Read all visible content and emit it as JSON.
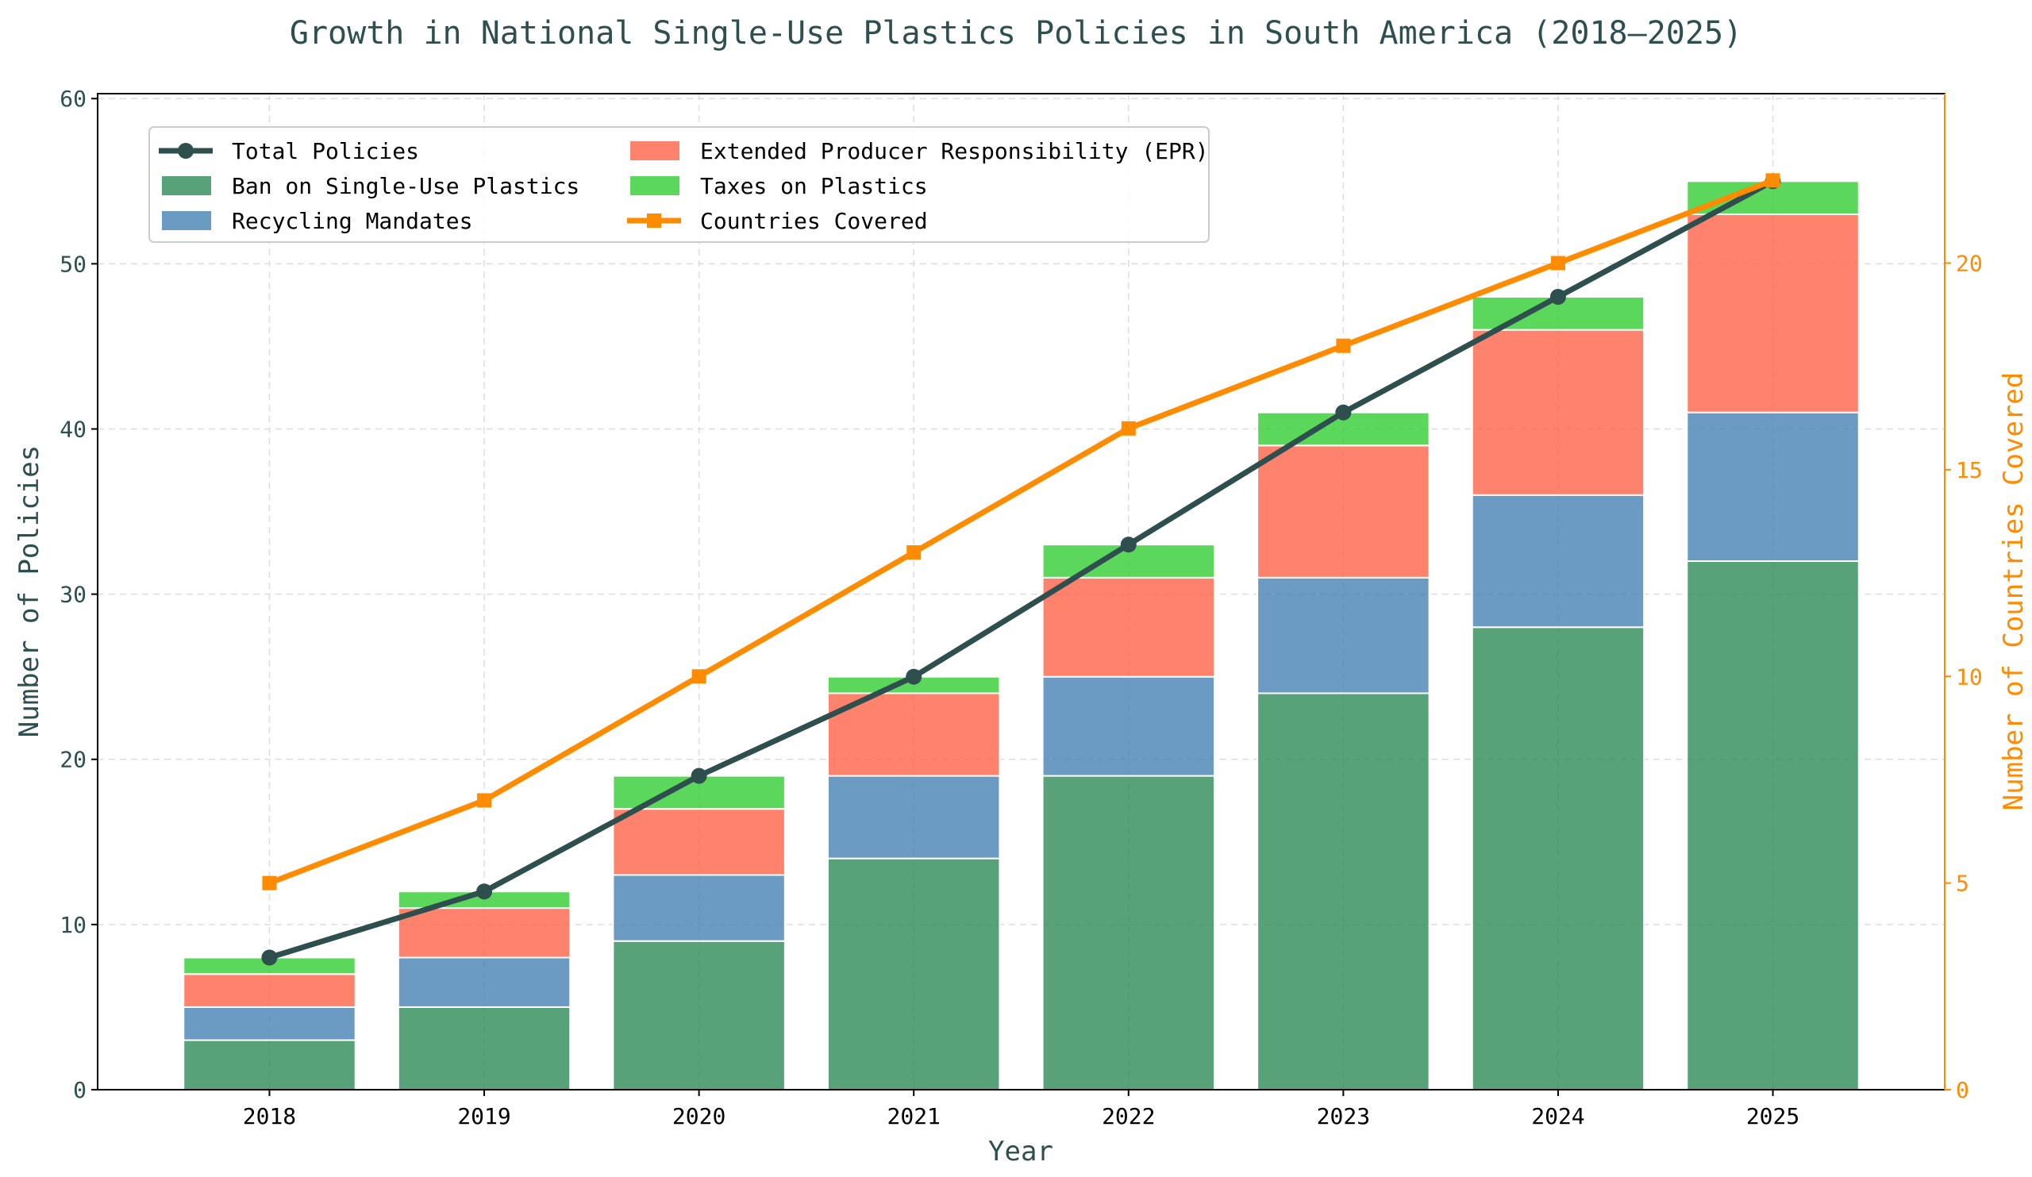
{
  "chart_data": {
    "type": "bar",
    "stacked": true,
    "title": "Growth in National Single-Use Plastics Policies in South America (2018–2025)",
    "xlabel": "Year",
    "ylabel": "Number of Policies",
    "y2label": "Number of Countries Covered",
    "categories": [
      "2018",
      "2019",
      "2020",
      "2021",
      "2022",
      "2023",
      "2024",
      "2025"
    ],
    "ylim": [
      0,
      60.3
    ],
    "y2lim": [
      0,
      24.1
    ],
    "yticks": [
      0,
      10,
      20,
      30,
      40,
      50,
      60
    ],
    "y2ticks": [
      0,
      5,
      10,
      15,
      20
    ],
    "grid": true,
    "legend_position": "top-left",
    "series": [
      {
        "name": "Ban on Single-Use Plastics",
        "kind": "bar",
        "color": "#2e8b57",
        "values": [
          3,
          5,
          9,
          14,
          19,
          24,
          28,
          32
        ]
      },
      {
        "name": "Recycling Mandates",
        "kind": "bar",
        "color": "#4682b4",
        "values": [
          2,
          3,
          4,
          5,
          6,
          7,
          8,
          9
        ]
      },
      {
        "name": "Extended Producer Responsibility (EPR)",
        "kind": "bar",
        "color": "#ff6347",
        "values": [
          2,
          3,
          4,
          5,
          6,
          8,
          10,
          12
        ]
      },
      {
        "name": "Taxes on Plastics",
        "kind": "bar",
        "color": "#32cd32",
        "values": [
          1,
          1,
          2,
          1,
          2,
          2,
          2,
          2
        ]
      },
      {
        "name": "Total Policies",
        "kind": "line",
        "axis": "left",
        "marker": "circle",
        "color": "#2f4f4f",
        "values": [
          8,
          12,
          19,
          25,
          33,
          41,
          48,
          55
        ]
      },
      {
        "name": "Countries Covered",
        "kind": "line",
        "axis": "right",
        "marker": "square",
        "color": "#ff8c00",
        "values": [
          5,
          7,
          10,
          13,
          16,
          18,
          20,
          22
        ]
      }
    ],
    "legend_order": [
      "Total Policies",
      "Ban on Single-Use Plastics",
      "Recycling Mandates",
      "Extended Producer Responsibility (EPR)",
      "Taxes on Plastics",
      "Countries Covered"
    ]
  }
}
